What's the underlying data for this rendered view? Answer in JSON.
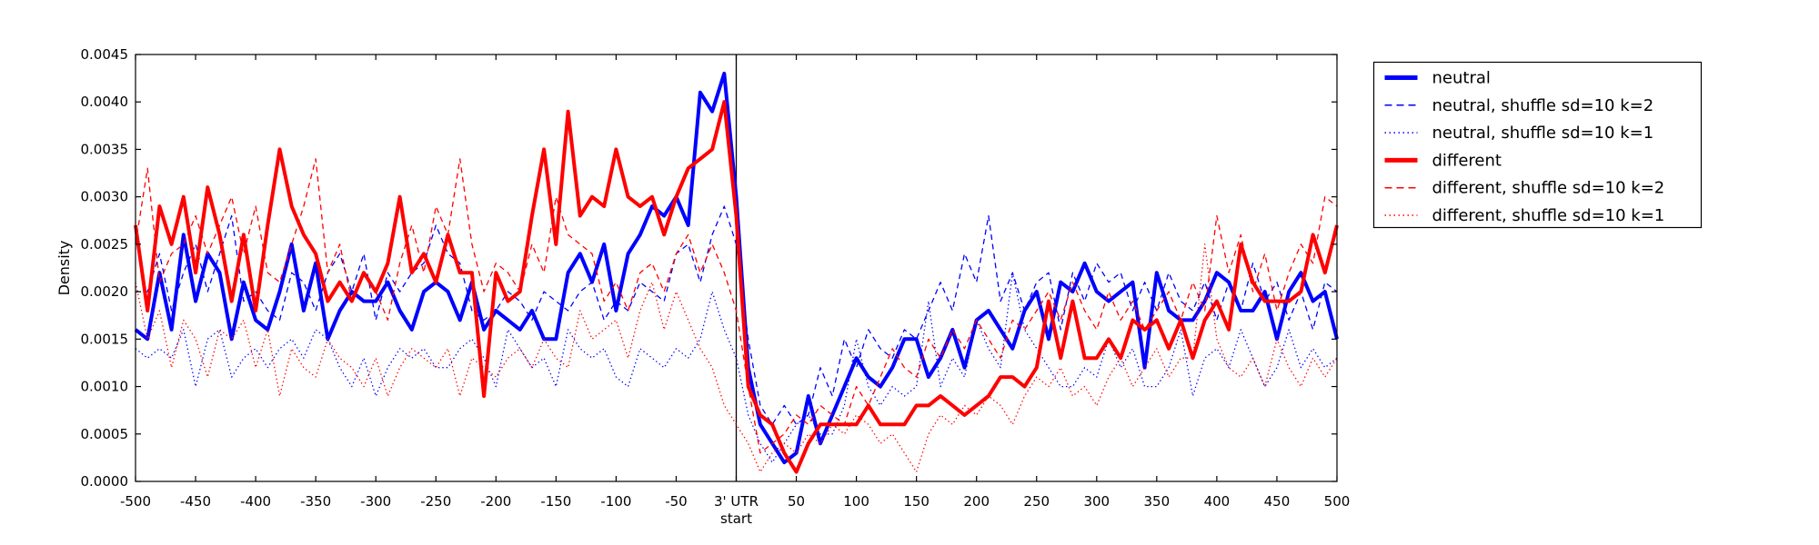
{
  "figure": {
    "background": "#ffffff",
    "axis_color": "#000000"
  },
  "chart_data": {
    "type": "line",
    "title": "",
    "xlabel": "",
    "ylabel": "Density",
    "xlim": [
      -500,
      500
    ],
    "ylim": [
      0,
      0.0045
    ],
    "grid": false,
    "vline_x": 0,
    "x_tick_values": [
      -500,
      -450,
      -400,
      -350,
      -300,
      -250,
      -200,
      -150,
      -100,
      -50,
      0,
      50,
      100,
      150,
      200,
      250,
      300,
      350,
      400,
      450,
      500
    ],
    "x_tick_labels": [
      "-500",
      "-450",
      "-400",
      "-350",
      "-300",
      "-250",
      "-200",
      "-150",
      "-100",
      "-50",
      "3' UTR\nstart",
      "50",
      "100",
      "150",
      "200",
      "250",
      "300",
      "350",
      "400",
      "450",
      "500"
    ],
    "y_tick_values": [
      0,
      0.0005,
      0.001,
      0.0015,
      0.002,
      0.0025,
      0.003,
      0.0035,
      0.004,
      0.0045
    ],
    "y_tick_labels": [
      "0.0000",
      "0.0005",
      "0.0010",
      "0.0015",
      "0.0020",
      "0.0025",
      "0.0030",
      "0.0035",
      "0.0040",
      "0.0045"
    ],
    "x": {
      "start": -500,
      "step": 10,
      "count": 101
    },
    "y_multiplier": 0.0001,
    "series": [
      {
        "name": "neutral",
        "color": "#0000ff",
        "style": "solid",
        "values": [
          16,
          15,
          22,
          16,
          26,
          19,
          24,
          22,
          15,
          21,
          17,
          16,
          20,
          25,
          18,
          23,
          15,
          18,
          20,
          19,
          19,
          21,
          18,
          16,
          20,
          21,
          20,
          17,
          21,
          16,
          18,
          17,
          16,
          18,
          15,
          15,
          22,
          24,
          21,
          25,
          18,
          24,
          26,
          29,
          28,
          30,
          27,
          41,
          39,
          43,
          30,
          12,
          6,
          4,
          2,
          3,
          9,
          4,
          7,
          10,
          13,
          11,
          10,
          12,
          15,
          15,
          11,
          13,
          16,
          12,
          17,
          18,
          16,
          14,
          18,
          20,
          15,
          21,
          20,
          23,
          20,
          19,
          20,
          21,
          12,
          22,
          18,
          17,
          17,
          19,
          22,
          21,
          18,
          18,
          20,
          15,
          20,
          22,
          19,
          20,
          15
        ]
      },
      {
        "name": "neutral, shuffle sd=10 k=2",
        "color": "#0000ff",
        "style": "dashed",
        "values": [
          20,
          20,
          24,
          18,
          22,
          25,
          20,
          24,
          28,
          19,
          20,
          18,
          17,
          22,
          21,
          18,
          22,
          24,
          20,
          24,
          17,
          22,
          20,
          22,
          23,
          27,
          24,
          23,
          18,
          17,
          18,
          20,
          19,
          17,
          20,
          19,
          18,
          20,
          21,
          17,
          19,
          18,
          21,
          20,
          19,
          24,
          25,
          21,
          26,
          29,
          25,
          15,
          8,
          6,
          8,
          6,
          7,
          12,
          9,
          15,
          12,
          16,
          14,
          13,
          16,
          15,
          18,
          21,
          18,
          24,
          21,
          28,
          19,
          22,
          18,
          21,
          22,
          16,
          22,
          19,
          23,
          21,
          22,
          18,
          21,
          18,
          22,
          19,
          18,
          21,
          17,
          21,
          18,
          23,
          19,
          21,
          17,
          20,
          16,
          21,
          20
        ]
      },
      {
        "name": "neutral, shuffle sd=10 k=1",
        "color": "#0000ff",
        "style": "dotted",
        "values": [
          14,
          13,
          14,
          13,
          16,
          10,
          15,
          16,
          11,
          13,
          14,
          12,
          14,
          15,
          13,
          16,
          15,
          12,
          10,
          13,
          9,
          12,
          14,
          13,
          14,
          12,
          12,
          14,
          15,
          13,
          10,
          16,
          14,
          12,
          13,
          10,
          16,
          14,
          13,
          14,
          11,
          10,
          14,
          13,
          12,
          14,
          13,
          15,
          20,
          16,
          13,
          7,
          4,
          2,
          4,
          6,
          7,
          5,
          5,
          8,
          15,
          10,
          8,
          10,
          9,
          10,
          19,
          10,
          13,
          11,
          17,
          14,
          12,
          22,
          16,
          14,
          12,
          10,
          10,
          12,
          11,
          15,
          12,
          14,
          10,
          10,
          12,
          16,
          9,
          13,
          14,
          12,
          16,
          13,
          10,
          12,
          16,
          12,
          14,
          12,
          13
        ]
      },
      {
        "name": "different",
        "color": "#ff0000",
        "style": "solid",
        "values": [
          27,
          18,
          29,
          25,
          30,
          22,
          31,
          26,
          19,
          26,
          18,
          27,
          35,
          29,
          26,
          24,
          19,
          21,
          19,
          22,
          20,
          23,
          30,
          22,
          24,
          21,
          26,
          22,
          22,
          9,
          22,
          19,
          20,
          28,
          35,
          25,
          39,
          28,
          30,
          29,
          35,
          30,
          29,
          30,
          26,
          30,
          33,
          34,
          35,
          40,
          28,
          10,
          7,
          6,
          3,
          1,
          4,
          6,
          6,
          6,
          6,
          8,
          6,
          6,
          6,
          8,
          8,
          9,
          8,
          7,
          8,
          9,
          11,
          11,
          10,
          12,
          19,
          13,
          19,
          13,
          13,
          15,
          13,
          17,
          16,
          17,
          14,
          17,
          13,
          17,
          19,
          16,
          25,
          21,
          19,
          19,
          19,
          20,
          26,
          22,
          27
        ]
      },
      {
        "name": "different, shuffle sd=10 k=2",
        "color": "#ff0000",
        "style": "dashed",
        "values": [
          25,
          33,
          21,
          24,
          25,
          28,
          24,
          27,
          30,
          24,
          29,
          22,
          21,
          25,
          29,
          34,
          22,
          25,
          19,
          22,
          20,
          17,
          23,
          27,
          22,
          29,
          26,
          34,
          25,
          20,
          23,
          22,
          20,
          25,
          22,
          30,
          26,
          25,
          24,
          19,
          21,
          18,
          22,
          23,
          20,
          24,
          26,
          22,
          25,
          22,
          18,
          10,
          3,
          4,
          5,
          7,
          6,
          8,
          7,
          6,
          10,
          8,
          11,
          14,
          12,
          11,
          15,
          13,
          16,
          14,
          17,
          15,
          13,
          17,
          16,
          18,
          20,
          17,
          21,
          18,
          16,
          20,
          17,
          19,
          16,
          18,
          20,
          17,
          21,
          18,
          28,
          22,
          26,
          20,
          24,
          18,
          22,
          25,
          23,
          30,
          29
        ]
      },
      {
        "name": "different, shuffle sd=10 k=1",
        "color": "#ff0000",
        "style": "dotted",
        "values": [
          21,
          15,
          18,
          12,
          17,
          15,
          11,
          16,
          15,
          17,
          12,
          16,
          9,
          14,
          12,
          11,
          15,
          13,
          12,
          10,
          13,
          9,
          12,
          14,
          13,
          12,
          14,
          9,
          13,
          12,
          11,
          13,
          14,
          12,
          15,
          13,
          12,
          18,
          15,
          16,
          17,
          13,
          18,
          21,
          16,
          20,
          17,
          14,
          12,
          8,
          6,
          4,
          1,
          3,
          4,
          3,
          5,
          4,
          6,
          5,
          7,
          6,
          4,
          5,
          3,
          1,
          5,
          7,
          6,
          8,
          7,
          9,
          8,
          6,
          9,
          11,
          10,
          12,
          9,
          10,
          8,
          11,
          13,
          10,
          12,
          14,
          11,
          13,
          13,
          25,
          15,
          12,
          11,
          13,
          10,
          15,
          12,
          10,
          13,
          11,
          13
        ]
      }
    ],
    "legend": {
      "position": "upper-right-outside",
      "entries": [
        "neutral",
        "neutral, shuffle sd=10 k=2",
        "neutral, shuffle sd=10 k=1",
        "different",
        "different, shuffle sd=10 k=2",
        "different, shuffle sd=10 k=1"
      ]
    }
  }
}
